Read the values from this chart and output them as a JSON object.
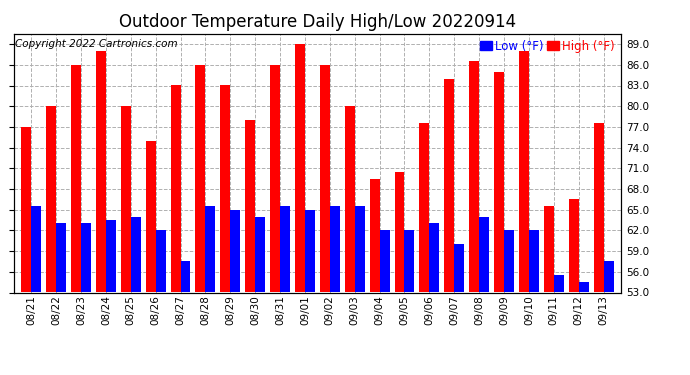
{
  "title": "Outdoor Temperature Daily High/Low 20220914",
  "copyright": "Copyright 2022 Cartronics.com",
  "legend_low": "Low (°F)",
  "legend_high": "High (°F)",
  "categories": [
    "08/21",
    "08/22",
    "08/23",
    "08/24",
    "08/25",
    "08/26",
    "08/27",
    "08/28",
    "08/29",
    "08/30",
    "08/31",
    "09/01",
    "09/02",
    "09/03",
    "09/04",
    "09/05",
    "09/06",
    "09/07",
    "09/08",
    "09/09",
    "09/10",
    "09/11",
    "09/12",
    "09/13"
  ],
  "high_values": [
    77.0,
    80.0,
    86.0,
    88.0,
    80.0,
    75.0,
    83.0,
    86.0,
    83.0,
    78.0,
    86.0,
    89.0,
    86.0,
    80.0,
    69.5,
    70.5,
    77.5,
    84.0,
    86.5,
    85.0,
    88.0,
    65.5,
    66.5,
    77.5
  ],
  "low_values": [
    65.5,
    63.0,
    63.0,
    63.5,
    64.0,
    62.0,
    57.5,
    65.5,
    65.0,
    64.0,
    65.5,
    65.0,
    65.5,
    65.5,
    62.0,
    62.0,
    63.0,
    60.0,
    64.0,
    62.0,
    62.0,
    55.5,
    54.5,
    57.5
  ],
  "bar_color_high": "#ff0000",
  "bar_color_low": "#0000ff",
  "background_color": "#ffffff",
  "plot_bg_color": "#ffffff",
  "grid_color": "#b0b0b0",
  "ylim_min": 53.0,
  "ylim_max": 90.5,
  "yticks": [
    53.0,
    56.0,
    59.0,
    62.0,
    65.0,
    68.0,
    71.0,
    74.0,
    77.0,
    80.0,
    83.0,
    86.0,
    89.0
  ],
  "title_fontsize": 12,
  "copyright_fontsize": 7.5,
  "legend_fontsize": 8.5,
  "tick_fontsize": 7.5,
  "bar_width": 0.4
}
